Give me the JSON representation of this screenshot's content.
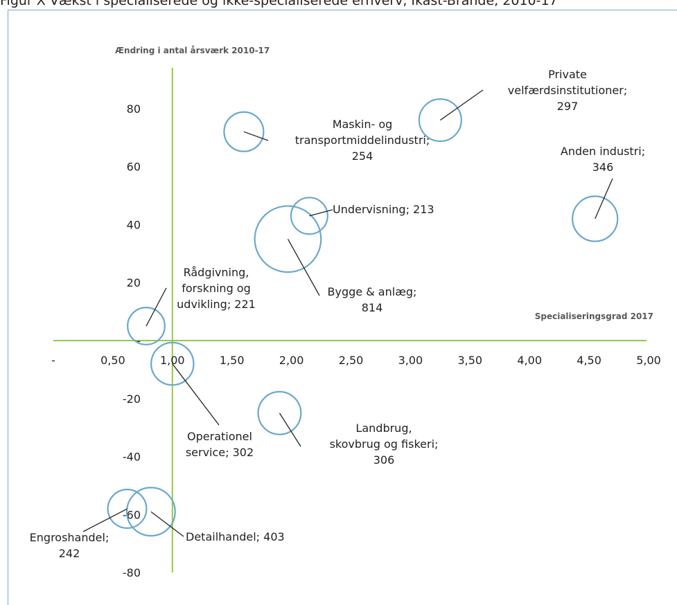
{
  "caption": "Figur X Vækst i specialiserede og ikke-specialiserede erhverv, Ikast-Brande, 2010-17",
  "chart_data": {
    "type": "bubble-scatter",
    "title": "",
    "xlabel": "Specialiseringsgrad 2017",
    "ylabel": "Ændring i antal årsværk 2010-17",
    "xlim": [
      0,
      5
    ],
    "ylim": [
      -80,
      90
    ],
    "x_ticks": [
      "-",
      "0,50",
      "1,00",
      "1,50",
      "2,00",
      "2,50",
      "3,00",
      "3,50",
      "4,00",
      "4,50",
      "5,00"
    ],
    "y_ticks": [
      "80",
      "60",
      "40",
      "20",
      "-",
      "-20",
      "-40",
      "-60",
      "-80"
    ],
    "grid": false,
    "crosshair": {
      "x": 1.0,
      "y": 0
    },
    "colors": {
      "bubble": "#6aa8cc",
      "axis": "#92c84e"
    },
    "points": [
      {
        "label": [
          "Private",
          "velfærdsinstitutioner;",
          "297"
        ],
        "x": 3.25,
        "y": 76,
        "size": 297
      },
      {
        "label": [
          "Maskin- og",
          "transportmiddelindustri;",
          "254"
        ],
        "x": 1.6,
        "y": 72,
        "size": 254
      },
      {
        "label": [
          "Anden industri;",
          "346"
        ],
        "x": 4.55,
        "y": 42,
        "size": 346
      },
      {
        "label": [
          "Undervisning;  213"
        ],
        "x": 2.15,
        "y": 43,
        "size": 213
      },
      {
        "label": [
          "Bygge & anlæg;",
          "814"
        ],
        "x": 1.97,
        "y": 35,
        "size": 814
      },
      {
        "label": [
          "Rådgivning,",
          "forskning og",
          "udvikling;  221"
        ],
        "x": 0.78,
        "y": 5,
        "size": 221
      },
      {
        "label": [
          "Operationel",
          "service;  302"
        ],
        "x": 1.0,
        "y": -8,
        "size": 302
      },
      {
        "label": [
          "Landbrug,",
          "skovbrug og fiskeri;",
          "306"
        ],
        "x": 1.9,
        "y": -25,
        "size": 306
      },
      {
        "label": [
          "Engroshandel;",
          "242"
        ],
        "x": 0.62,
        "y": -58,
        "size": 242
      },
      {
        "label": [
          "Detailhandel;  403"
        ],
        "x": 0.82,
        "y": -59,
        "size": 403
      }
    ]
  }
}
